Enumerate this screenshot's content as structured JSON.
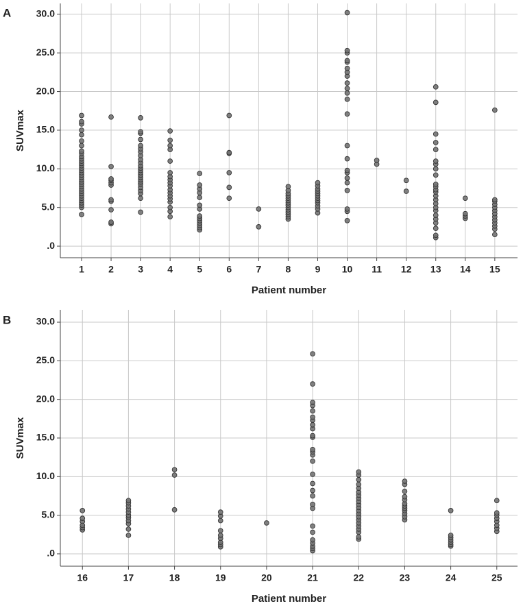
{
  "chart_data": [
    {
      "type": "scatter",
      "label": "A",
      "xlabel": "Patient number",
      "ylabel": "SUVmax",
      "color": "#737373",
      "grid": true,
      "xlim": [
        0.28,
        15.77
      ],
      "xticks": [
        1,
        2,
        3,
        4,
        5,
        6,
        7,
        8,
        9,
        10,
        11,
        12,
        13,
        14,
        15
      ],
      "ylim": [
        -1.5,
        31.4
      ],
      "yticks": [
        {
          "value": 0,
          "label": ".0"
        },
        {
          "value": 5,
          "label": "5.0"
        },
        {
          "value": 10,
          "label": "10.0"
        },
        {
          "value": 15,
          "label": "15.0"
        },
        {
          "value": 20,
          "label": "20.0"
        },
        {
          "value": 25,
          "label": "25.0"
        },
        {
          "value": 30,
          "label": "30.0"
        }
      ],
      "x": [
        1,
        1,
        1,
        1,
        1,
        1,
        1,
        1,
        1,
        1,
        1,
        1,
        1,
        1,
        1,
        1,
        1,
        1,
        1,
        1,
        1,
        1,
        1,
        1,
        1,
        1,
        1,
        1,
        1,
        1,
        1,
        1,
        1,
        2,
        2,
        2,
        2,
        2,
        2,
        2,
        2,
        2,
        2,
        2,
        3,
        3,
        3,
        3,
        3,
        3,
        3,
        3,
        3,
        3,
        3,
        3,
        3,
        3,
        3,
        3,
        3,
        3,
        3,
        3,
        3,
        3,
        3,
        3,
        4,
        4,
        4,
        4,
        4,
        4,
        4,
        4,
        4,
        4,
        4,
        4,
        4,
        4,
        4,
        4,
        4,
        4,
        5,
        5,
        5,
        5,
        5,
        5,
        5,
        5,
        5,
        5,
        5,
        5,
        5,
        5,
        6,
        6,
        6,
        6,
        6,
        6,
        7,
        7,
        8,
        8,
        8,
        8,
        8,
        8,
        8,
        8,
        8,
        8,
        8,
        8,
        8,
        8,
        9,
        9,
        9,
        9,
        9,
        9,
        9,
        9,
        9,
        9,
        9,
        9,
        10,
        10,
        10,
        10,
        10,
        10,
        10,
        10,
        10,
        10,
        10,
        10,
        10,
        10,
        10,
        10,
        10,
        10,
        10,
        10,
        10,
        10,
        10,
        11,
        11,
        12,
        12,
        13,
        13,
        13,
        13,
        13,
        13,
        13,
        13,
        13,
        13,
        13,
        13,
        13,
        13,
        13,
        13,
        13,
        13,
        13,
        13,
        13,
        13,
        13,
        13,
        14,
        14,
        14,
        14,
        15,
        15,
        15,
        15,
        15,
        15,
        15,
        15,
        15,
        15,
        15,
        15,
        15
      ],
      "values": [
        4.1,
        5.0,
        5.3,
        5.6,
        5.9,
        6.2,
        6.5,
        6.8,
        7.1,
        7.4,
        7.7,
        8.0,
        8.3,
        8.6,
        8.9,
        9.2,
        9.5,
        9.8,
        10.1,
        10.4,
        10.7,
        11.0,
        11.3,
        11.6,
        12.0,
        12.3,
        13.0,
        13.6,
        14.4,
        15.0,
        15.8,
        16.1,
        16.9,
        2.9,
        3.1,
        4.7,
        5.8,
        6.0,
        7.9,
        8.2,
        8.5,
        8.7,
        10.3,
        16.7,
        4.4,
        6.2,
        6.8,
        7.2,
        7.6,
        8.0,
        8.3,
        8.6,
        8.9,
        9.2,
        9.5,
        9.8,
        10.1,
        10.4,
        10.8,
        11.2,
        11.7,
        12.2,
        12.6,
        13.0,
        13.8,
        14.6,
        14.8,
        16.6,
        3.8,
        4.5,
        5.0,
        5.7,
        6.1,
        6.5,
        6.9,
        7.3,
        7.8,
        8.2,
        8.6,
        9.0,
        9.5,
        11.0,
        12.5,
        13.0,
        13.7,
        14.9,
        2.1,
        2.4,
        2.7,
        3.0,
        3.3,
        3.6,
        3.9,
        4.8,
        5.3,
        6.3,
        6.9,
        7.4,
        7.9,
        9.4,
        6.2,
        7.6,
        9.5,
        12.0,
        12.1,
        16.9,
        2.5,
        4.8,
        3.5,
        3.8,
        4.1,
        4.4,
        4.7,
        5.0,
        5.3,
        5.6,
        5.9,
        6.2,
        6.5,
        6.8,
        7.2,
        7.7,
        4.3,
        4.8,
        5.2,
        5.6,
        5.9,
        6.2,
        6.5,
        6.8,
        7.1,
        7.4,
        7.8,
        8.2,
        3.3,
        4.5,
        4.8,
        7.2,
        8.2,
        8.8,
        9.5,
        9.8,
        11.3,
        13.0,
        17.1,
        19.0,
        19.8,
        20.4,
        21.1,
        22.0,
        22.5,
        23.0,
        23.8,
        24.0,
        25.0,
        25.3,
        30.2,
        10.6,
        11.1,
        7.1,
        8.5,
        1.1,
        1.4,
        2.3,
        3.0,
        3.5,
        4.0,
        4.6,
        5.0,
        5.5,
        6.0,
        6.5,
        7.0,
        7.3,
        7.7,
        8.0,
        9.2,
        10.0,
        10.6,
        11.0,
        12.5,
        13.4,
        14.5,
        18.6,
        20.6,
        3.6,
        3.9,
        4.2,
        6.2,
        1.5,
        2.2,
        2.6,
        3.0,
        3.4,
        3.8,
        4.2,
        4.6,
        5.0,
        5.4,
        5.8,
        6.0,
        17.6
      ]
    },
    {
      "type": "scatter",
      "label": "B",
      "xlabel": "Patient number",
      "ylabel": "SUVmax",
      "color": "#737373",
      "grid": true,
      "xlim": [
        15.52,
        25.45
      ],
      "xticks": [
        16,
        17,
        18,
        19,
        20,
        21,
        22,
        23,
        24,
        25
      ],
      "ylim": [
        -1.6,
        31.6
      ],
      "yticks": [
        {
          "value": 0,
          "label": ".0"
        },
        {
          "value": 5,
          "label": "5.0"
        },
        {
          "value": 10,
          "label": "10.0"
        },
        {
          "value": 15,
          "label": "15.0"
        },
        {
          "value": 20,
          "label": "20.0"
        },
        {
          "value": 25,
          "label": "25.0"
        },
        {
          "value": 30,
          "label": "30.0"
        }
      ],
      "x": [
        16,
        16,
        16,
        16,
        16,
        16,
        17,
        17,
        17,
        17,
        17,
        17,
        17,
        17,
        17,
        17,
        17,
        18,
        18,
        18,
        19,
        19,
        19,
        19,
        19,
        19,
        19,
        19,
        19,
        20,
        21,
        21,
        21,
        21,
        21,
        21,
        21,
        21,
        21,
        21,
        21,
        21,
        21,
        21,
        21,
        21,
        21,
        21,
        21,
        21,
        21,
        21,
        21,
        21,
        21,
        21,
        21,
        21,
        22,
        22,
        22,
        22,
        22,
        22,
        22,
        22,
        22,
        22,
        22,
        22,
        22,
        22,
        22,
        22,
        22,
        22,
        22,
        22,
        22,
        23,
        23,
        23,
        23,
        23,
        23,
        23,
        23,
        23,
        23,
        23,
        23,
        24,
        24,
        24,
        24,
        24,
        24,
        24,
        25,
        25,
        25,
        25,
        25,
        25,
        25,
        25
      ],
      "values": [
        3.1,
        3.4,
        3.7,
        4.2,
        4.6,
        5.6,
        2.4,
        3.2,
        3.9,
        4.3,
        4.7,
        5.0,
        5.4,
        5.8,
        6.2,
        6.6,
        6.9,
        5.7,
        10.2,
        10.9,
        0.9,
        1.2,
        1.5,
        2.0,
        2.4,
        3.0,
        4.3,
        4.9,
        5.4,
        4.0,
        0.4,
        0.7,
        1.0,
        1.4,
        1.8,
        2.8,
        3.6,
        5.9,
        6.4,
        7.5,
        8.2,
        9.1,
        10.3,
        12.0,
        12.8,
        13.2,
        13.5,
        15.1,
        15.3,
        16.2,
        16.7,
        17.3,
        17.7,
        18.5,
        19.2,
        19.6,
        22.0,
        25.9,
        1.9,
        2.2,
        2.8,
        3.2,
        3.6,
        4.0,
        4.4,
        4.8,
        5.2,
        5.6,
        6.0,
        6.4,
        6.8,
        7.2,
        7.6,
        8.0,
        8.5,
        9.0,
        9.6,
        10.2,
        10.6,
        4.4,
        4.8,
        5.2,
        5.6,
        5.9,
        6.2,
        6.5,
        7.0,
        7.4,
        8.1,
        9.0,
        9.4,
        1.0,
        1.2,
        1.5,
        1.8,
        2.1,
        2.4,
        5.6,
        2.9,
        3.3,
        3.7,
        4.2,
        4.6,
        5.0,
        5.3,
        6.9
      ]
    }
  ]
}
